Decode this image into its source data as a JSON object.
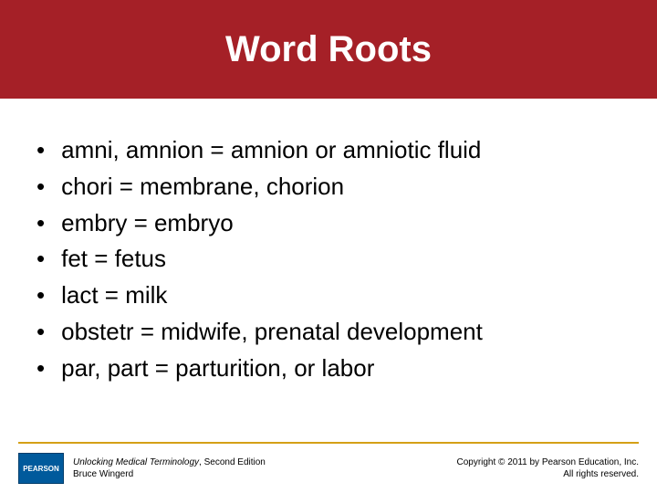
{
  "title": "Word Roots",
  "title_bar_color": "#a52027",
  "title_text_color": "#ffffff",
  "title_fontsize": 40,
  "bullets": [
    "amni, amnion = amnion or amniotic fluid",
    "chori = membrane, chorion",
    "embry = embryo",
    "fet = fetus",
    "lact = milk",
    "obstetr = midwife, prenatal development",
    "par, part = parturition, or labor"
  ],
  "bullet_fontsize": 26,
  "bullet_text_color": "#000000",
  "divider_color": "#d4a017",
  "logo_text": "PEARSON",
  "logo_bg_color": "#005a9c",
  "book_title": "Unlocking Medical Terminology",
  "book_edition": ", Second Edition",
  "book_author": "Bruce Wingerd",
  "copyright_line1": "Copyright © 2011 by Pearson Education, Inc.",
  "copyright_line2": "All rights reserved.",
  "footer_fontsize": 10,
  "background_color": "#ffffff"
}
